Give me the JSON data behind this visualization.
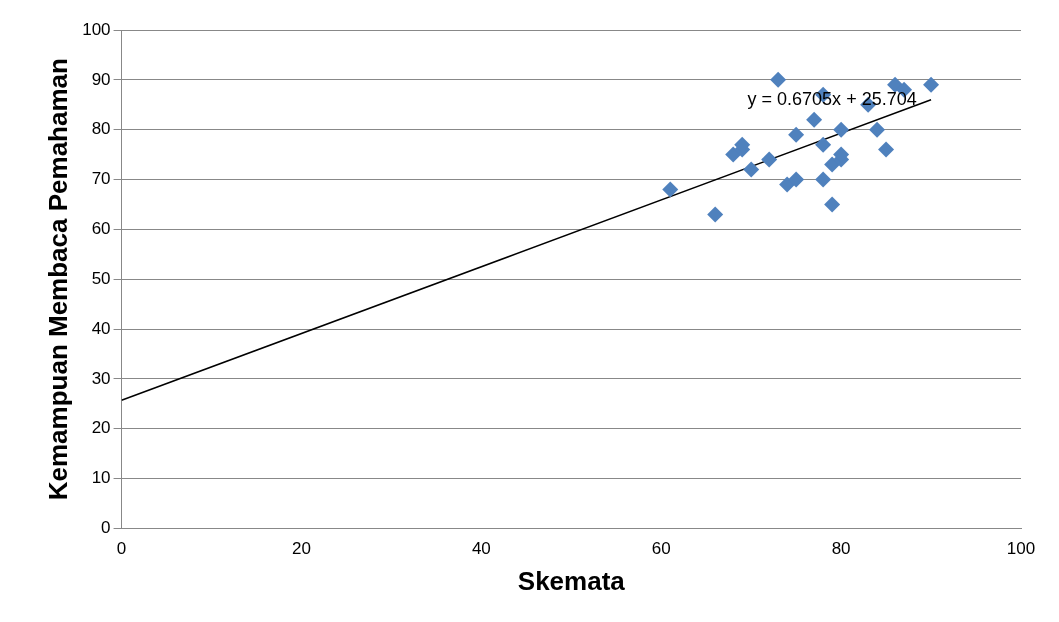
{
  "chart_data": {
    "type": "scatter",
    "xlabel": "Skemata",
    "ylabel": "Kemampuan Membaca Pemahaman",
    "annotations": [
      {
        "text": "y = 0.6705x + 25.704",
        "x": 79,
        "y": 86
      }
    ],
    "xlim": [
      0,
      100
    ],
    "xticks": [
      0,
      20,
      40,
      60,
      80,
      100
    ],
    "ylim": [
      0,
      100
    ],
    "yticks": [
      0,
      10,
      20,
      30,
      40,
      50,
      60,
      70,
      80,
      90,
      100
    ],
    "grid": "y",
    "legend": false,
    "marker": "diamond",
    "series": [
      {
        "color": "#4f81bd",
        "x": [
          61,
          66,
          68,
          69,
          69,
          70,
          72,
          73,
          74,
          75,
          75,
          77,
          78,
          78,
          78,
          79,
          79,
          80,
          80,
          80,
          83,
          84,
          85,
          86,
          87,
          90
        ],
        "values": [
          68,
          63,
          75,
          76,
          77,
          72,
          74,
          90,
          69,
          70,
          79,
          82,
          87,
          77,
          70,
          65,
          73,
          74,
          75,
          80,
          85,
          80,
          76,
          89,
          88,
          89
        ]
      },
      {
        "type": "line",
        "color": "#000000",
        "x": [
          0,
          90
        ],
        "values": [
          25.7,
          86
        ],
        "marker": "none"
      }
    ]
  }
}
